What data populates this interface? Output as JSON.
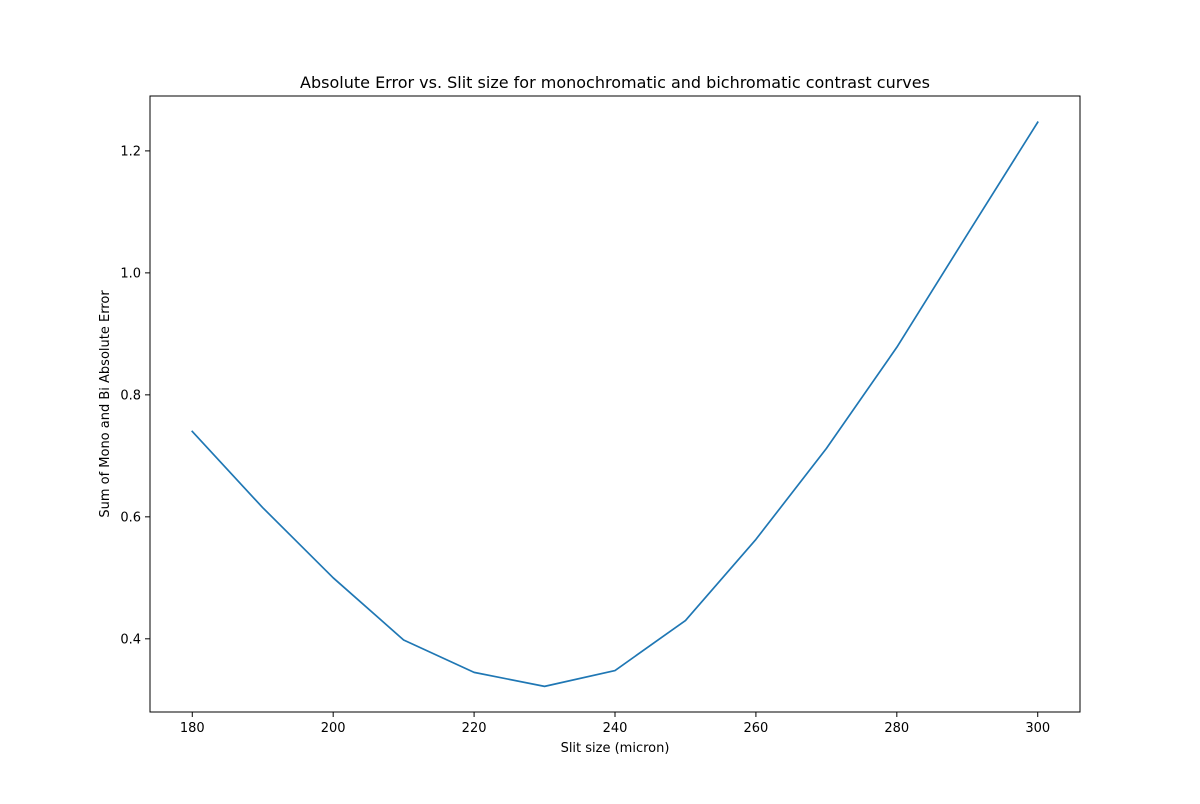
{
  "chart_data": {
    "type": "line",
    "title": "Absolute Error vs. Slit size for monochromatic and bichromatic contrast curves",
    "xlabel": "Slit size (micron)",
    "ylabel": "Sum of Mono and Bi Absolute Error",
    "xlim": [
      174,
      306
    ],
    "ylim": [
      0.28,
      1.29
    ],
    "xticks": [
      180,
      200,
      220,
      240,
      260,
      280,
      300
    ],
    "yticks": [
      0.4,
      0.6,
      0.8,
      1.0,
      1.2
    ],
    "xtick_labels": [
      "180",
      "200",
      "220",
      "240",
      "260",
      "280",
      "300"
    ],
    "ytick_labels": [
      "0.4",
      "0.6",
      "0.8",
      "1.0",
      "1.2"
    ],
    "grid": false,
    "series": [
      {
        "color": "#1f77b4",
        "x": [
          180,
          190,
          200,
          210,
          220,
          230,
          240,
          250,
          260,
          270,
          280,
          290,
          300
        ],
        "y": [
          0.74,
          0.615,
          0.5,
          0.398,
          0.345,
          0.322,
          0.348,
          0.43,
          0.563,
          0.712,
          0.878,
          1.063,
          1.247
        ]
      }
    ]
  }
}
